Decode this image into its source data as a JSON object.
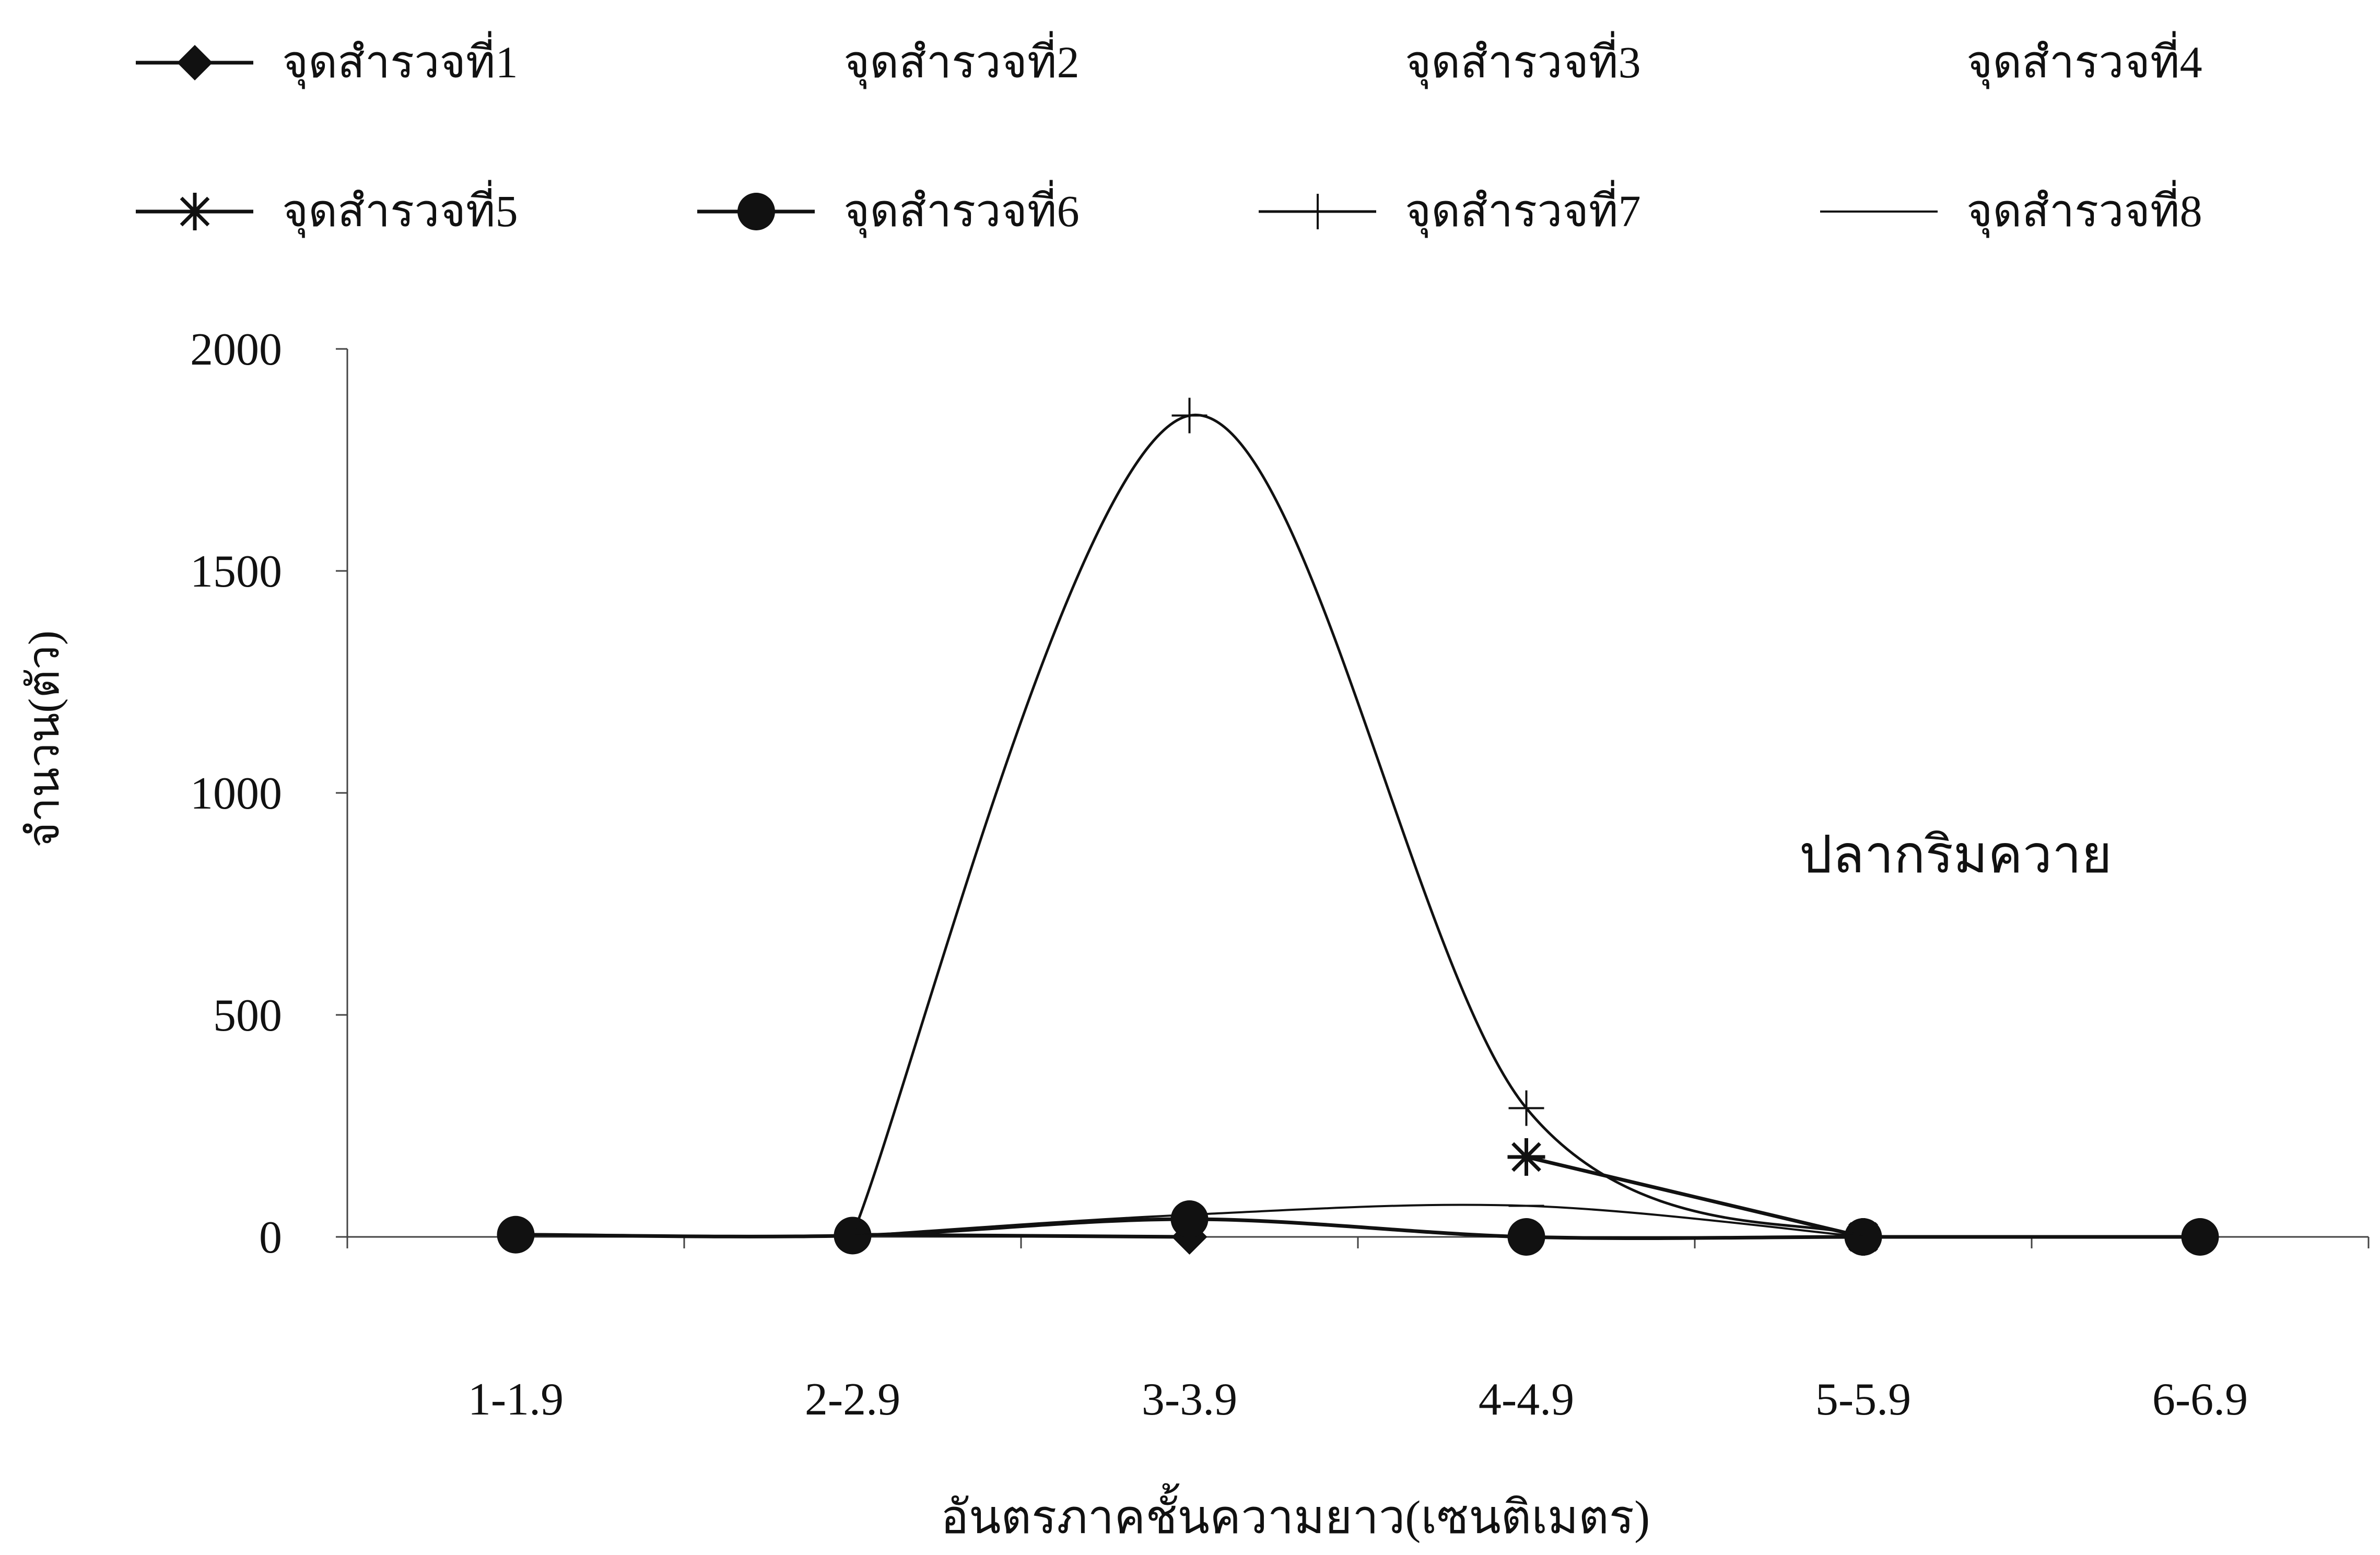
{
  "chart_data": {
    "type": "line",
    "title": "",
    "annotation": "ปลากริมควาย",
    "xlabel": "อันตรภาคชั้นความยาว(เซนติเมตร)",
    "ylabel": "จำนวน(ตัว)",
    "categories": [
      "1-1.9",
      "2-2.9",
      "3-3.9",
      "4-4.9",
      "5-5.9",
      "6-6.9"
    ],
    "ylim": [
      0,
      2000
    ],
    "yticks": [
      0,
      500,
      1000,
      1500,
      2000
    ],
    "grid": false,
    "legend_position": "top",
    "series": [
      {
        "name": "จุดสำรวจที่1",
        "marker": "diamond",
        "values": [
          null,
          5,
          0,
          null,
          null,
          null
        ]
      },
      {
        "name": "จุดสำรวจที่2",
        "marker": "none",
        "values": [
          null,
          null,
          null,
          null,
          null,
          null
        ]
      },
      {
        "name": "จุดสำรวจที่3",
        "marker": "none",
        "values": [
          null,
          null,
          null,
          null,
          null,
          null
        ]
      },
      {
        "name": "จุดสำรวจที่4",
        "marker": "none",
        "values": [
          null,
          null,
          null,
          null,
          null,
          null
        ]
      },
      {
        "name": "จุดสำรวจที่5",
        "marker": "asterisk",
        "values": [
          null,
          null,
          null,
          180,
          0,
          null
        ]
      },
      {
        "name": "จุดสำรวจที่6",
        "marker": "circle",
        "values": [
          5,
          3,
          40,
          0,
          0,
          0
        ]
      },
      {
        "name": "จุดสำรวจที่7",
        "marker": "plus",
        "values": [
          null,
          5,
          1850,
          290,
          0,
          null
        ]
      },
      {
        "name": "จุดสำรวจที่8",
        "marker": "dash",
        "values": [
          null,
          2,
          50,
          70,
          0,
          null
        ]
      }
    ]
  },
  "colors": {
    "line": "#111111",
    "axis": "#444444",
    "background": "#ffffff"
  }
}
